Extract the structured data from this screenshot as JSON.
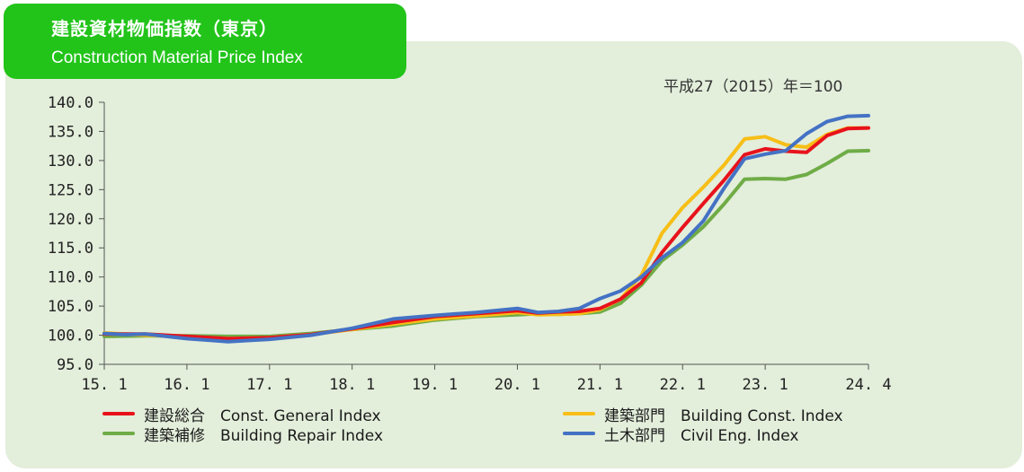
{
  "header": {
    "title_jp": "建設資材物価指数（東京）",
    "title_en": "Construction Material Price Index",
    "base_note": "平成27（2015）年＝100"
  },
  "colors": {
    "panel_bg": "#e3eedb",
    "title_bg": "#22c41a",
    "general": "#e8121b",
    "building": "#f7be16",
    "repair": "#6fac46",
    "civil": "#4472c4"
  },
  "legend": [
    {
      "label": "建設総合　Const. General  Index",
      "color": "#e8121b"
    },
    {
      "label": "建築部門　Building Const. Index",
      "color": "#f7be16"
    },
    {
      "label": "建築補修　Building Repair Index",
      "color": "#6fac46"
    },
    {
      "label": "土木部門　Civil Eng. Index",
      "color": "#4472c4"
    }
  ],
  "chart_data": {
    "type": "line",
    "title": "建設資材物価指数（東京）",
    "ylim": [
      95,
      140
    ],
    "yticks": [
      95,
      100,
      105,
      110,
      115,
      120,
      125,
      130,
      135,
      140
    ],
    "ytick_labels": [
      "95.0",
      "100.0",
      "105.0",
      "110.0",
      "115.0",
      "120.0",
      "125.0",
      "130.0",
      "135.0",
      "140.0"
    ],
    "xticks": [
      "15.1",
      "16.1",
      "17.1",
      "18.1",
      "19.1",
      "20.1",
      "21.1",
      "22.1",
      "23.1",
      "24.4"
    ],
    "xtick_labels": [
      "15. 1",
      "16. 1",
      "17. 1",
      "18. 1",
      "19. 1",
      "20. 1",
      "21. 1",
      "22. 1",
      "23. 1",
      "24. 4"
    ],
    "grid": false,
    "legend_position": "bottom",
    "series": [
      {
        "name": "建設総合　Const. General  Index",
        "color": "#e8121b",
        "points": [
          [
            "2015-01",
            100.2
          ],
          [
            "2015-07",
            100.2
          ],
          [
            "2016-01",
            99.8
          ],
          [
            "2016-07",
            99.4
          ],
          [
            "2017-01",
            99.6
          ],
          [
            "2017-07",
            100.1
          ],
          [
            "2018-01",
            101.1
          ],
          [
            "2018-07",
            102.2
          ],
          [
            "2019-01",
            103.2
          ],
          [
            "2019-07",
            103.7
          ],
          [
            "2020-01",
            104.2
          ],
          [
            "2020-04",
            103.8
          ],
          [
            "2020-07",
            104.0
          ],
          [
            "2020-10",
            104.1
          ],
          [
            "2021-01",
            104.6
          ],
          [
            "2021-04",
            106.2
          ],
          [
            "2021-07",
            109.0
          ],
          [
            "2021-10",
            114.2
          ],
          [
            "2022-01",
            118.5
          ],
          [
            "2022-04",
            122.6
          ],
          [
            "2022-07",
            126.6
          ],
          [
            "2022-10",
            131.0
          ],
          [
            "2023-01",
            132.0
          ],
          [
            "2023-04",
            131.6
          ],
          [
            "2023-07",
            131.4
          ],
          [
            "2023-10",
            134.3
          ],
          [
            "2024-01",
            135.5
          ],
          [
            "2024-04",
            135.6
          ]
        ]
      },
      {
        "name": "建築部門　Building Const. Index",
        "color": "#f7be16",
        "points": [
          [
            "2015-01",
            100.4
          ],
          [
            "2015-07",
            100.0
          ],
          [
            "2016-01",
            99.7
          ],
          [
            "2016-07",
            99.4
          ],
          [
            "2017-01",
            99.6
          ],
          [
            "2017-07",
            100.1
          ],
          [
            "2018-01",
            101.0
          ],
          [
            "2018-07",
            101.9
          ],
          [
            "2019-01",
            102.8
          ],
          [
            "2019-07",
            103.3
          ],
          [
            "2020-01",
            103.9
          ],
          [
            "2020-04",
            103.5
          ],
          [
            "2020-07",
            103.6
          ],
          [
            "2020-10",
            103.7
          ],
          [
            "2021-01",
            104.4
          ],
          [
            "2021-04",
            106.2
          ],
          [
            "2021-07",
            110.3
          ],
          [
            "2021-10",
            117.5
          ],
          [
            "2022-01",
            121.9
          ],
          [
            "2022-04",
            125.4
          ],
          [
            "2022-07",
            129.2
          ],
          [
            "2022-10",
            133.7
          ],
          [
            "2023-01",
            134.1
          ],
          [
            "2023-04",
            132.7
          ],
          [
            "2023-07",
            132.3
          ],
          [
            "2023-10",
            134.5
          ],
          [
            "2024-01",
            135.6
          ],
          [
            "2024-04",
            135.6
          ]
        ]
      },
      {
        "name": "建築補修　Building Repair Index",
        "color": "#6fac46",
        "points": [
          [
            "2015-01",
            99.8
          ],
          [
            "2015-07",
            99.9
          ],
          [
            "2016-01",
            99.9
          ],
          [
            "2016-07",
            99.8
          ],
          [
            "2017-01",
            99.8
          ],
          [
            "2017-07",
            100.3
          ],
          [
            "2018-01",
            101.0
          ],
          [
            "2018-07",
            101.6
          ],
          [
            "2019-01",
            102.6
          ],
          [
            "2019-07",
            103.2
          ],
          [
            "2020-01",
            103.5
          ],
          [
            "2020-04",
            103.7
          ],
          [
            "2020-07",
            103.6
          ],
          [
            "2020-10",
            103.7
          ],
          [
            "2021-01",
            104.0
          ],
          [
            "2021-04",
            105.5
          ],
          [
            "2021-07",
            108.6
          ],
          [
            "2021-10",
            112.8
          ],
          [
            "2022-01",
            115.5
          ],
          [
            "2022-04",
            118.6
          ],
          [
            "2022-07",
            122.5
          ],
          [
            "2022-10",
            126.8
          ],
          [
            "2023-01",
            126.9
          ],
          [
            "2023-04",
            126.8
          ],
          [
            "2023-07",
            127.6
          ],
          [
            "2023-10",
            129.5
          ],
          [
            "2024-01",
            131.6
          ],
          [
            "2024-04",
            131.7
          ]
        ]
      },
      {
        "name": "土木部門　Civil Eng. Index",
        "color": "#4472c4",
        "points": [
          [
            "2015-01",
            100.3
          ],
          [
            "2015-04",
            100.1
          ],
          [
            "2015-07",
            100.2
          ],
          [
            "2016-01",
            99.4
          ],
          [
            "2016-07",
            98.9
          ],
          [
            "2017-01",
            99.3
          ],
          [
            "2017-07",
            100.0
          ],
          [
            "2018-01",
            101.2
          ],
          [
            "2018-07",
            102.8
          ],
          [
            "2019-01",
            103.4
          ],
          [
            "2019-07",
            103.9
          ],
          [
            "2020-01",
            104.6
          ],
          [
            "2020-04",
            103.9
          ],
          [
            "2020-07",
            104.1
          ],
          [
            "2020-10",
            104.6
          ],
          [
            "2021-01",
            106.3
          ],
          [
            "2021-04",
            107.6
          ],
          [
            "2021-07",
            110.0
          ],
          [
            "2021-10",
            113.3
          ],
          [
            "2022-01",
            115.9
          ],
          [
            "2022-04",
            119.6
          ],
          [
            "2022-07",
            125.2
          ],
          [
            "2022-10",
            130.3
          ],
          [
            "2023-01",
            131.1
          ],
          [
            "2023-04",
            131.7
          ],
          [
            "2023-07",
            134.6
          ],
          [
            "2023-10",
            136.7
          ],
          [
            "2024-01",
            137.6
          ],
          [
            "2024-04",
            137.7
          ]
        ]
      }
    ]
  }
}
